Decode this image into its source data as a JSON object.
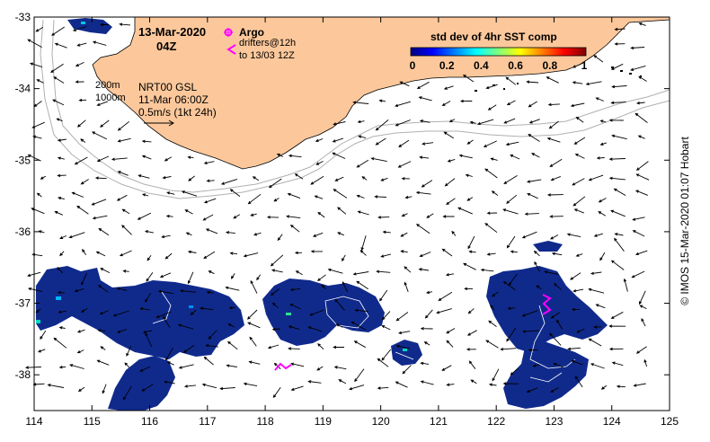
{
  "title": {
    "date": "13-Mar-2020",
    "time": "04Z"
  },
  "legend": {
    "argo": "Argo",
    "drifters_line1": "drifters@12h",
    "drifters_line2": "to 13/03 12Z"
  },
  "info": {
    "isobath_200": "200m",
    "isobath_1000": "1000m",
    "product": "NRT00 GSL",
    "product_time": "11-Mar 06:00Z",
    "scale_label": "0.5m/s (1kt 24h)"
  },
  "colorbar": {
    "title": "std dev of 4hr SST comp",
    "ticks": [
      "0",
      "0.2",
      "0.4",
      "0.6",
      "0.8",
      "1"
    ],
    "colors": [
      "#00007f",
      "#0000ff",
      "#007fff",
      "#00ffff",
      "#7fff7f",
      "#ffff00",
      "#ff7f00",
      "#ff0000",
      "#7f0000"
    ]
  },
  "axes": {
    "x_ticks": [
      "114",
      "115",
      "116",
      "117",
      "118",
      "119",
      "120",
      "121",
      "122",
      "123",
      "124",
      "125"
    ],
    "y_ticks": [
      "-33",
      "-34",
      "-35",
      "-36",
      "-37",
      "-38"
    ],
    "x_range": [
      114,
      125
    ],
    "y_range": [
      -38.5,
      -33
    ]
  },
  "credit": "© IMOS 15-Mar-2020 01:07 Hobart",
  "colors": {
    "land": "#fcc89b",
    "sst_patch": "#102a8c",
    "argo": "#ff00ff",
    "isobath": "#b0b0b0"
  }
}
